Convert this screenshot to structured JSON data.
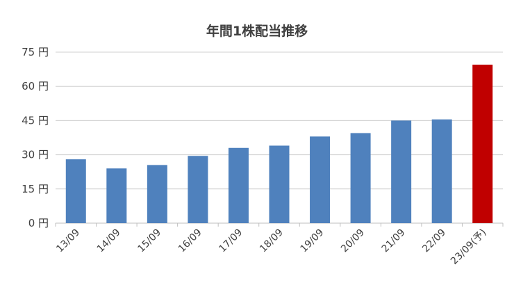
{
  "chart_data": {
    "type": "bar",
    "title": "年間1株配当推移",
    "categories": [
      "13/09",
      "14/09",
      "15/09",
      "16/09",
      "17/09",
      "18/09",
      "19/09",
      "20/09",
      "21/09",
      "22/09",
      "23/09(予)"
    ],
    "values": [
      28,
      24,
      25.5,
      29.5,
      33,
      34,
      38,
      39.5,
      45,
      45.5,
      69.5
    ],
    "forecast_index": 10,
    "ylim": [
      0,
      75
    ],
    "y_ticks": [
      0,
      15,
      30,
      45,
      60,
      75
    ],
    "y_tick_labels": [
      "0 円",
      "15 円",
      "30 円",
      "45 円",
      "60 円",
      "75 円"
    ],
    "grid": true,
    "colors": {
      "bar": "#4f81bd",
      "forecast_bar": "#c00000",
      "grid": "#d0d0d0",
      "axis": "#bfbfbf"
    }
  }
}
